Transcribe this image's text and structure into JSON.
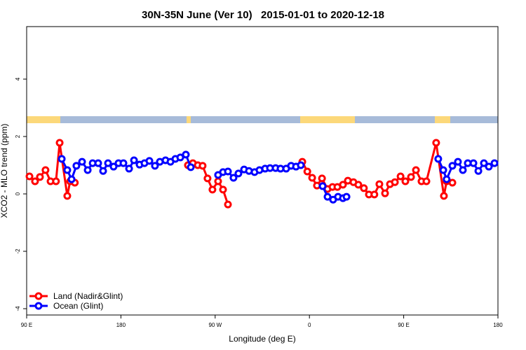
{
  "chart_data": {
    "type": "line",
    "title": "30N-35N June (Ver 10)   2015-01-01 to 2020-12-18",
    "x_label": "Longitude (deg E)",
    "y_label": "XCO2 - MLO trend (ppm)",
    "xlim": [
      90,
      540
    ],
    "ylim": [
      -4.22,
      5.83
    ],
    "xticks": [
      {
        "value": 90,
        "label": "90 E"
      },
      180,
      {
        "value": 270,
        "label": "90 W"
      },
      {
        "value": 360,
        "label": "0"
      },
      {
        "value": 450,
        "label": "90 E"
      },
      {
        "value": 540,
        "label": "180"
      }
    ],
    "yticks": [
      -4,
      -2,
      0,
      2,
      4
    ],
    "legend": "bottom-left",
    "series": [
      {
        "name": "Land (Nadir&Glint)",
        "color": "#ff0000",
        "x": [
          92.7,
          98,
          102.7,
          108,
          112.8,
          118,
          121.5,
          128.8,
          131.5,
          136,
          null,
          244,
          248.7,
          253.4,
          258,
          262.7,
          267.4,
          272.8,
          277.5,
          282.2,
          null,
          353.2,
          358,
          362.6,
          367.2,
          372,
          377.3,
          382,
          386.7,
          392,
          396.7,
          402,
          406.7,
          412,
          416.8,
          422,
          426.8,
          432.2,
          436.9,
          441.6,
          447,
          451.6,
          457,
          461.7,
          467,
          471.7,
          481,
          488.4,
          491,
          496.5
        ],
        "values": [
          0.61,
          0.44,
          0.59,
          0.83,
          0.44,
          0.44,
          1.78,
          -0.07,
          0.44,
          0.39,
          null,
          1.0,
          1.07,
          1.0,
          0.98,
          0.54,
          0.15,
          0.44,
          0.15,
          -0.37,
          null,
          1.12,
          0.78,
          0.56,
          0.29,
          0.54,
          0.17,
          0.24,
          0.24,
          0.32,
          0.46,
          0.41,
          0.32,
          0.2,
          -0.02,
          -0.02,
          0.34,
          0.02,
          0.34,
          0.41,
          0.61,
          0.44,
          0.59,
          0.83,
          0.44,
          0.44,
          1.78,
          -0.07,
          0.44,
          0.39
        ]
      },
      {
        "name": "Ocean (Glint)",
        "color": "#0000ff",
        "x": [
          123.5,
          128.8,
          132.9,
          137.5,
          142.9,
          148.3,
          153,
          158.3,
          163,
          167.7,
          173,
          177.7,
          182.4,
          187.8,
          192.5,
          197.8,
          202.5,
          207.2,
          212.5,
          217.2,
          222.6,
          227.3,
          232,
          236.7,
          242,
          246.7,
          null,
          272.8,
          277.5,
          282.2,
          287.5,
          292.2,
          297.6,
          302.3,
          307.6,
          312.3,
          317.7,
          322.4,
          327.7,
          332.4,
          337.8,
          342.5,
          347.2,
          351.8,
          null,
          372.6,
          377.3,
          382.6,
          387.3,
          392,
          395.4,
          null,
          483,
          487.8,
          491,
          496.5,
          501.8,
          506.5,
          511.2,
          516.6,
          521.3,
          526.6,
          531.3,
          536.7
        ],
        "values": [
          1.22,
          0.83,
          0.51,
          0.98,
          1.12,
          0.83,
          1.07,
          1.07,
          0.8,
          1.07,
          0.95,
          1.07,
          1.07,
          0.88,
          1.17,
          1.02,
          1.07,
          1.15,
          0.98,
          1.12,
          1.17,
          1.12,
          1.22,
          1.27,
          1.37,
          0.93,
          null,
          0.66,
          0.76,
          0.78,
          0.56,
          0.71,
          0.85,
          0.8,
          0.76,
          0.83,
          0.88,
          0.9,
          0.9,
          0.88,
          0.88,
          0.98,
          0.95,
          1.0,
          null,
          0.27,
          -0.1,
          -0.2,
          -0.1,
          -0.15,
          -0.1,
          null,
          1.22,
          0.83,
          0.51,
          0.98,
          1.12,
          0.83,
          1.07,
          1.07,
          0.8,
          1.07,
          0.95,
          1.07
        ]
      }
    ]
  }
}
